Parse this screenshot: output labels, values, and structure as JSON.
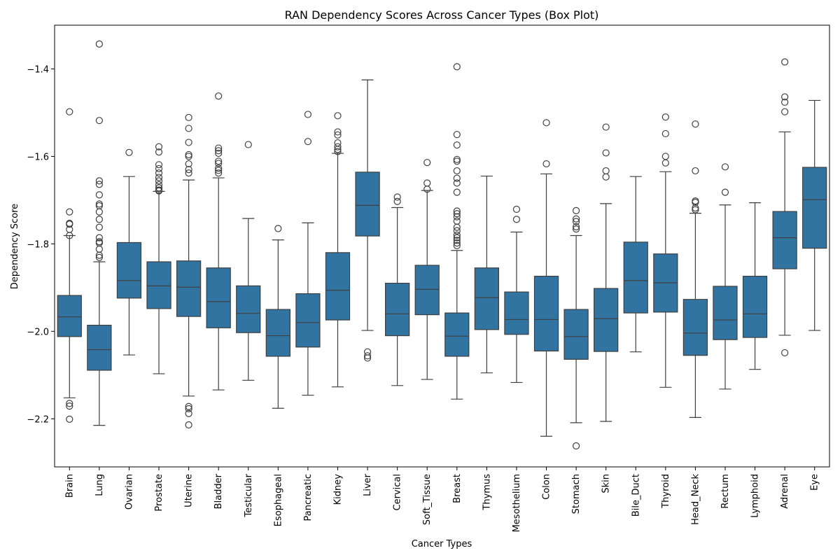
{
  "chart_data": {
    "type": "box",
    "title": "RAN Dependency Scores Across Cancer Types (Box Plot)",
    "xlabel": "Cancer Types",
    "ylabel": "Dependency Score",
    "ylim": [
      -2.31,
      -1.3
    ],
    "yticks": [
      -1.4,
      -1.6,
      -1.8,
      -2.0,
      -2.2
    ],
    "ytick_labels": [
      "−1.4",
      "−1.6",
      "−1.8",
      "−2.0",
      "−2.2"
    ],
    "box_color": "#3274a1",
    "grid": false,
    "categories": [
      "Brain",
      "Lung",
      "Ovarian",
      "Prostate",
      "Uterine",
      "Bladder",
      "Testicular",
      "Esophageal",
      "Pancreatic",
      "Kidney",
      "Liver",
      "Cervical",
      "Soft_Tissue",
      "Breast",
      "Thymus",
      "Mesothelium",
      "Colon",
      "Stomach",
      "Skin",
      "Bile_Duct",
      "Thyroid",
      "Head_Neck",
      "Rectum",
      "Lymphoid",
      "Adrenal",
      "Eye"
    ],
    "boxes": [
      {
        "q1": -2.012,
        "median": -1.967,
        "q3": -1.918,
        "whisker_low": -2.152,
        "whisker_high": -1.781,
        "outliers": [
          -1.498,
          -1.727,
          -1.753,
          -1.755,
          -1.767,
          -1.781,
          -2.165,
          -2.171,
          -2.201
        ]
      },
      {
        "q1": -2.089,
        "median": -2.042,
        "q3": -1.986,
        "whisker_low": -2.215,
        "whisker_high": -1.841,
        "outliers": [
          -1.343,
          -1.518,
          -1.656,
          -1.664,
          -1.688,
          -1.709,
          -1.713,
          -1.727,
          -1.744,
          -1.762,
          -1.786,
          -1.795,
          -1.798,
          -1.812,
          -1.826,
          -1.831
        ]
      },
      {
        "q1": -1.924,
        "median": -1.884,
        "q3": -1.797,
        "whisker_low": -2.054,
        "whisker_high": -1.646,
        "outliers": [
          -1.591
        ]
      },
      {
        "q1": -1.948,
        "median": -1.896,
        "q3": -1.841,
        "whisker_low": -2.097,
        "whisker_high": -1.68,
        "outliers": [
          -1.578,
          -1.59,
          -1.619,
          -1.628,
          -1.638,
          -1.648,
          -1.656,
          -1.665,
          -1.672,
          -1.677,
          -1.679
        ]
      },
      {
        "q1": -1.966,
        "median": -1.899,
        "q3": -1.839,
        "whisker_low": -2.148,
        "whisker_high": -1.654,
        "outliers": [
          -1.511,
          -1.536,
          -1.568,
          -1.596,
          -1.6,
          -1.617,
          -1.63,
          -1.638,
          -2.172,
          -2.177,
          -2.188,
          -2.214
        ]
      },
      {
        "q1": -1.992,
        "median": -1.932,
        "q3": -1.855,
        "whisker_low": -2.134,
        "whisker_high": -1.649,
        "outliers": [
          -1.462,
          -1.581,
          -1.587,
          -1.593,
          -1.611,
          -1.616,
          -1.627,
          -1.632,
          -1.638
        ]
      },
      {
        "q1": -2.003,
        "median": -1.959,
        "q3": -1.896,
        "whisker_low": -2.112,
        "whisker_high": -1.742,
        "outliers": [
          -1.573
        ]
      },
      {
        "q1": -2.057,
        "median": -2.01,
        "q3": -1.95,
        "whisker_low": -2.176,
        "whisker_high": -1.791,
        "outliers": [
          -1.765
        ]
      },
      {
        "q1": -2.036,
        "median": -1.98,
        "q3": -1.914,
        "whisker_low": -2.146,
        "whisker_high": -1.752,
        "outliers": [
          -1.504,
          -1.566
        ]
      },
      {
        "q1": -1.974,
        "median": -1.906,
        "q3": -1.82,
        "whisker_low": -2.127,
        "whisker_high": -1.593,
        "outliers": [
          -1.507,
          -1.544,
          -1.551,
          -1.569,
          -1.578,
          -1.584,
          -1.589
        ]
      },
      {
        "q1": -1.782,
        "median": -1.712,
        "q3": -1.636,
        "whisker_low": -1.998,
        "whisker_high": -1.425,
        "outliers": [
          -2.047,
          -2.056,
          -2.061
        ]
      },
      {
        "q1": -2.01,
        "median": -1.96,
        "q3": -1.89,
        "whisker_low": -2.124,
        "whisker_high": -1.717,
        "outliers": [
          -1.693,
          -1.703
        ]
      },
      {
        "q1": -1.962,
        "median": -1.904,
        "q3": -1.849,
        "whisker_low": -2.11,
        "whisker_high": -1.678,
        "outliers": [
          -1.614,
          -1.661,
          -1.675
        ]
      },
      {
        "q1": -2.057,
        "median": -2.011,
        "q3": -1.958,
        "whisker_low": -2.155,
        "whisker_high": -1.815,
        "outliers": [
          -1.395,
          -1.55,
          -1.574,
          -1.607,
          -1.611,
          -1.633,
          -1.65,
          -1.661,
          -1.682,
          -1.725,
          -1.731,
          -1.738,
          -1.748,
          -1.762,
          -1.77,
          -1.78,
          -1.786,
          -1.792,
          -1.798,
          -1.804
        ]
      },
      {
        "q1": -1.996,
        "median": -1.923,
        "q3": -1.855,
        "whisker_low": -2.095,
        "whisker_high": -1.645,
        "outliers": []
      },
      {
        "q1": -2.007,
        "median": -1.973,
        "q3": -1.91,
        "whisker_low": -2.117,
        "whisker_high": -1.773,
        "outliers": [
          -1.721,
          -1.744
        ]
      },
      {
        "q1": -2.045,
        "median": -1.973,
        "q3": -1.874,
        "whisker_low": -2.24,
        "whisker_high": -1.64,
        "outliers": [
          -1.523,
          -1.617
        ]
      },
      {
        "q1": -2.064,
        "median": -2.012,
        "q3": -1.95,
        "whisker_low": -2.209,
        "whisker_high": -1.781,
        "outliers": [
          -1.724,
          -1.743,
          -1.749,
          -1.761,
          -1.766,
          -2.262
        ]
      },
      {
        "q1": -2.046,
        "median": -1.971,
        "q3": -1.902,
        "whisker_low": -2.206,
        "whisker_high": -1.708,
        "outliers": [
          -1.533,
          -1.592,
          -1.633,
          -1.647
        ]
      },
      {
        "q1": -1.958,
        "median": -1.884,
        "q3": -1.796,
        "whisker_low": -2.047,
        "whisker_high": -1.646,
        "outliers": []
      },
      {
        "q1": -1.956,
        "median": -1.889,
        "q3": -1.823,
        "whisker_low": -2.128,
        "whisker_high": -1.635,
        "outliers": [
          -1.51,
          -1.548,
          -1.6,
          -1.615
        ]
      },
      {
        "q1": -2.055,
        "median": -2.004,
        "q3": -1.927,
        "whisker_low": -2.197,
        "whisker_high": -1.73,
        "outliers": [
          -1.526,
          -1.633,
          -1.702,
          -1.705,
          -1.718,
          -1.722
        ]
      },
      {
        "q1": -2.019,
        "median": -1.974,
        "q3": -1.897,
        "whisker_low": -2.132,
        "whisker_high": -1.711,
        "outliers": [
          -1.624,
          -1.682
        ]
      },
      {
        "q1": -2.014,
        "median": -1.96,
        "q3": -1.874,
        "whisker_low": -2.087,
        "whisker_high": -1.706,
        "outliers": []
      },
      {
        "q1": -1.857,
        "median": -1.786,
        "q3": -1.726,
        "whisker_low": -2.009,
        "whisker_high": -1.544,
        "outliers": [
          -1.384,
          -1.464,
          -1.476,
          -1.498,
          -2.049
        ]
      },
      {
        "q1": -1.81,
        "median": -1.699,
        "q3": -1.625,
        "whisker_low": -1.998,
        "whisker_high": -1.472,
        "outliers": []
      }
    ]
  }
}
